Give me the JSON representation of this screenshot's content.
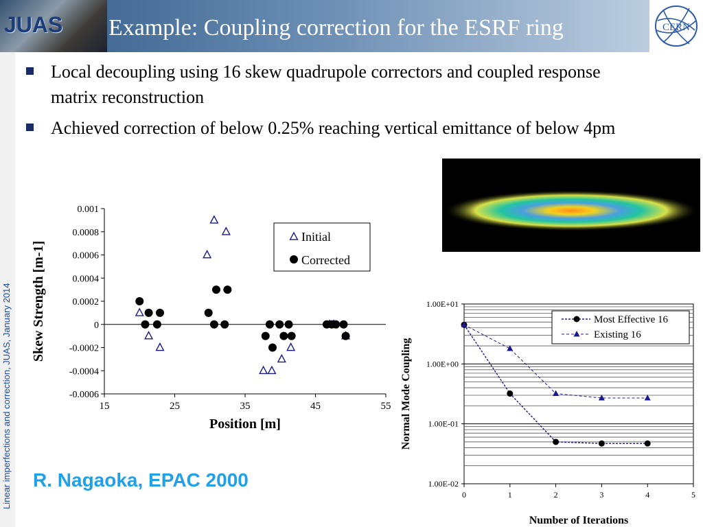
{
  "slide": {
    "title": "Example: Coupling correction for the ESRF ring",
    "logo_left_text": "JUAS",
    "logo_right_text": "CERN",
    "sidebar": "Linear imperfections and correction, JUAS, January 2014",
    "bullets": [
      "Local decoupling using 16 skew quadrupole correctors and coupled response matrix reconstruction",
      "Achieved correction of below 0.25% reaching vertical emittance of below 4pm"
    ],
    "credit": "R. Nagaoka, EPAC 2000",
    "colors": {
      "accent": "#2f5a86",
      "credit": "#1fa0e8",
      "series_blue": "#1a1a8c"
    }
  },
  "chart_data": [
    {
      "type": "scatter",
      "xlabel": "Position [m]",
      "ylabel": "Skew Strength [m-1]",
      "xlim": [
        15,
        55
      ],
      "ylim": [
        -0.0006,
        0.001
      ],
      "x_ticks": [
        "15",
        "25",
        "35",
        "45",
        "55"
      ],
      "y_ticks": [
        "0.001",
        "0.0008",
        "0.0006",
        "0.0004",
        "0.0002",
        "0",
        "-0.0002",
        "-0.0004",
        "-0.0006"
      ],
      "legend": "top-right",
      "series": [
        {
          "name": "Initial",
          "marker": "open-triangle",
          "points": [
            [
              20.0,
              0.0001
            ],
            [
              21.3,
              -0.0001
            ],
            [
              22.9,
              -0.0002
            ],
            [
              29.6,
              0.0006
            ],
            [
              30.6,
              0.0009
            ],
            [
              32.3,
              0.0008
            ],
            [
              37.6,
              -0.0004
            ],
            [
              38.8,
              -0.0004
            ],
            [
              40.2,
              -0.0003
            ],
            [
              41.5,
              -0.0002
            ],
            [
              47.0,
              0
            ],
            [
              47.6,
              0
            ],
            [
              49.3,
              -0.0001
            ]
          ]
        },
        {
          "name": "Corrected",
          "marker": "filled-circle",
          "points": [
            [
              20.0,
              0.0002
            ],
            [
              20.8,
              0
            ],
            [
              21.3,
              0.0001
            ],
            [
              22.5,
              0
            ],
            [
              22.9,
              0.0001
            ],
            [
              29.8,
              0.0001
            ],
            [
              30.6,
              0
            ],
            [
              30.9,
              0.0003
            ],
            [
              32.1,
              0
            ],
            [
              32.5,
              0.0003
            ],
            [
              37.9,
              -0.0001
            ],
            [
              38.5,
              0
            ],
            [
              38.9,
              -0.0002
            ],
            [
              39.9,
              0
            ],
            [
              40.5,
              -0.0001
            ],
            [
              41.2,
              0
            ],
            [
              41.6,
              -0.0001
            ],
            [
              46.6,
              0
            ],
            [
              47.3,
              0
            ],
            [
              47.9,
              0
            ],
            [
              49.0,
              0
            ],
            [
              49.3,
              -0.0001
            ]
          ]
        }
      ]
    },
    {
      "type": "line",
      "xlabel": "Number of Iterations",
      "ylabel": "Normal Mode Coupling",
      "log_y": true,
      "xlim": [
        0,
        5
      ],
      "ylim": [
        0.01,
        10
      ],
      "x_ticks": [
        "0",
        "1",
        "2",
        "3",
        "4",
        "5"
      ],
      "y_ticks": [
        "1.00E+01",
        "1.00E+00",
        "1.00E-01",
        "1.00E-02"
      ],
      "grid": true,
      "legend": "top-right",
      "series": [
        {
          "name": "Most Effective 16",
          "marker": "filled-circle",
          "x": [
            0,
            1,
            2,
            3,
            4
          ],
          "values": [
            4.5,
            0.32,
            0.05,
            0.047,
            0.047
          ]
        },
        {
          "name": "Existing 16",
          "marker": "filled-triangle",
          "x": [
            0,
            1,
            2,
            3,
            4
          ],
          "values": [
            4.5,
            1.8,
            0.32,
            0.27,
            0.27
          ]
        }
      ]
    }
  ]
}
